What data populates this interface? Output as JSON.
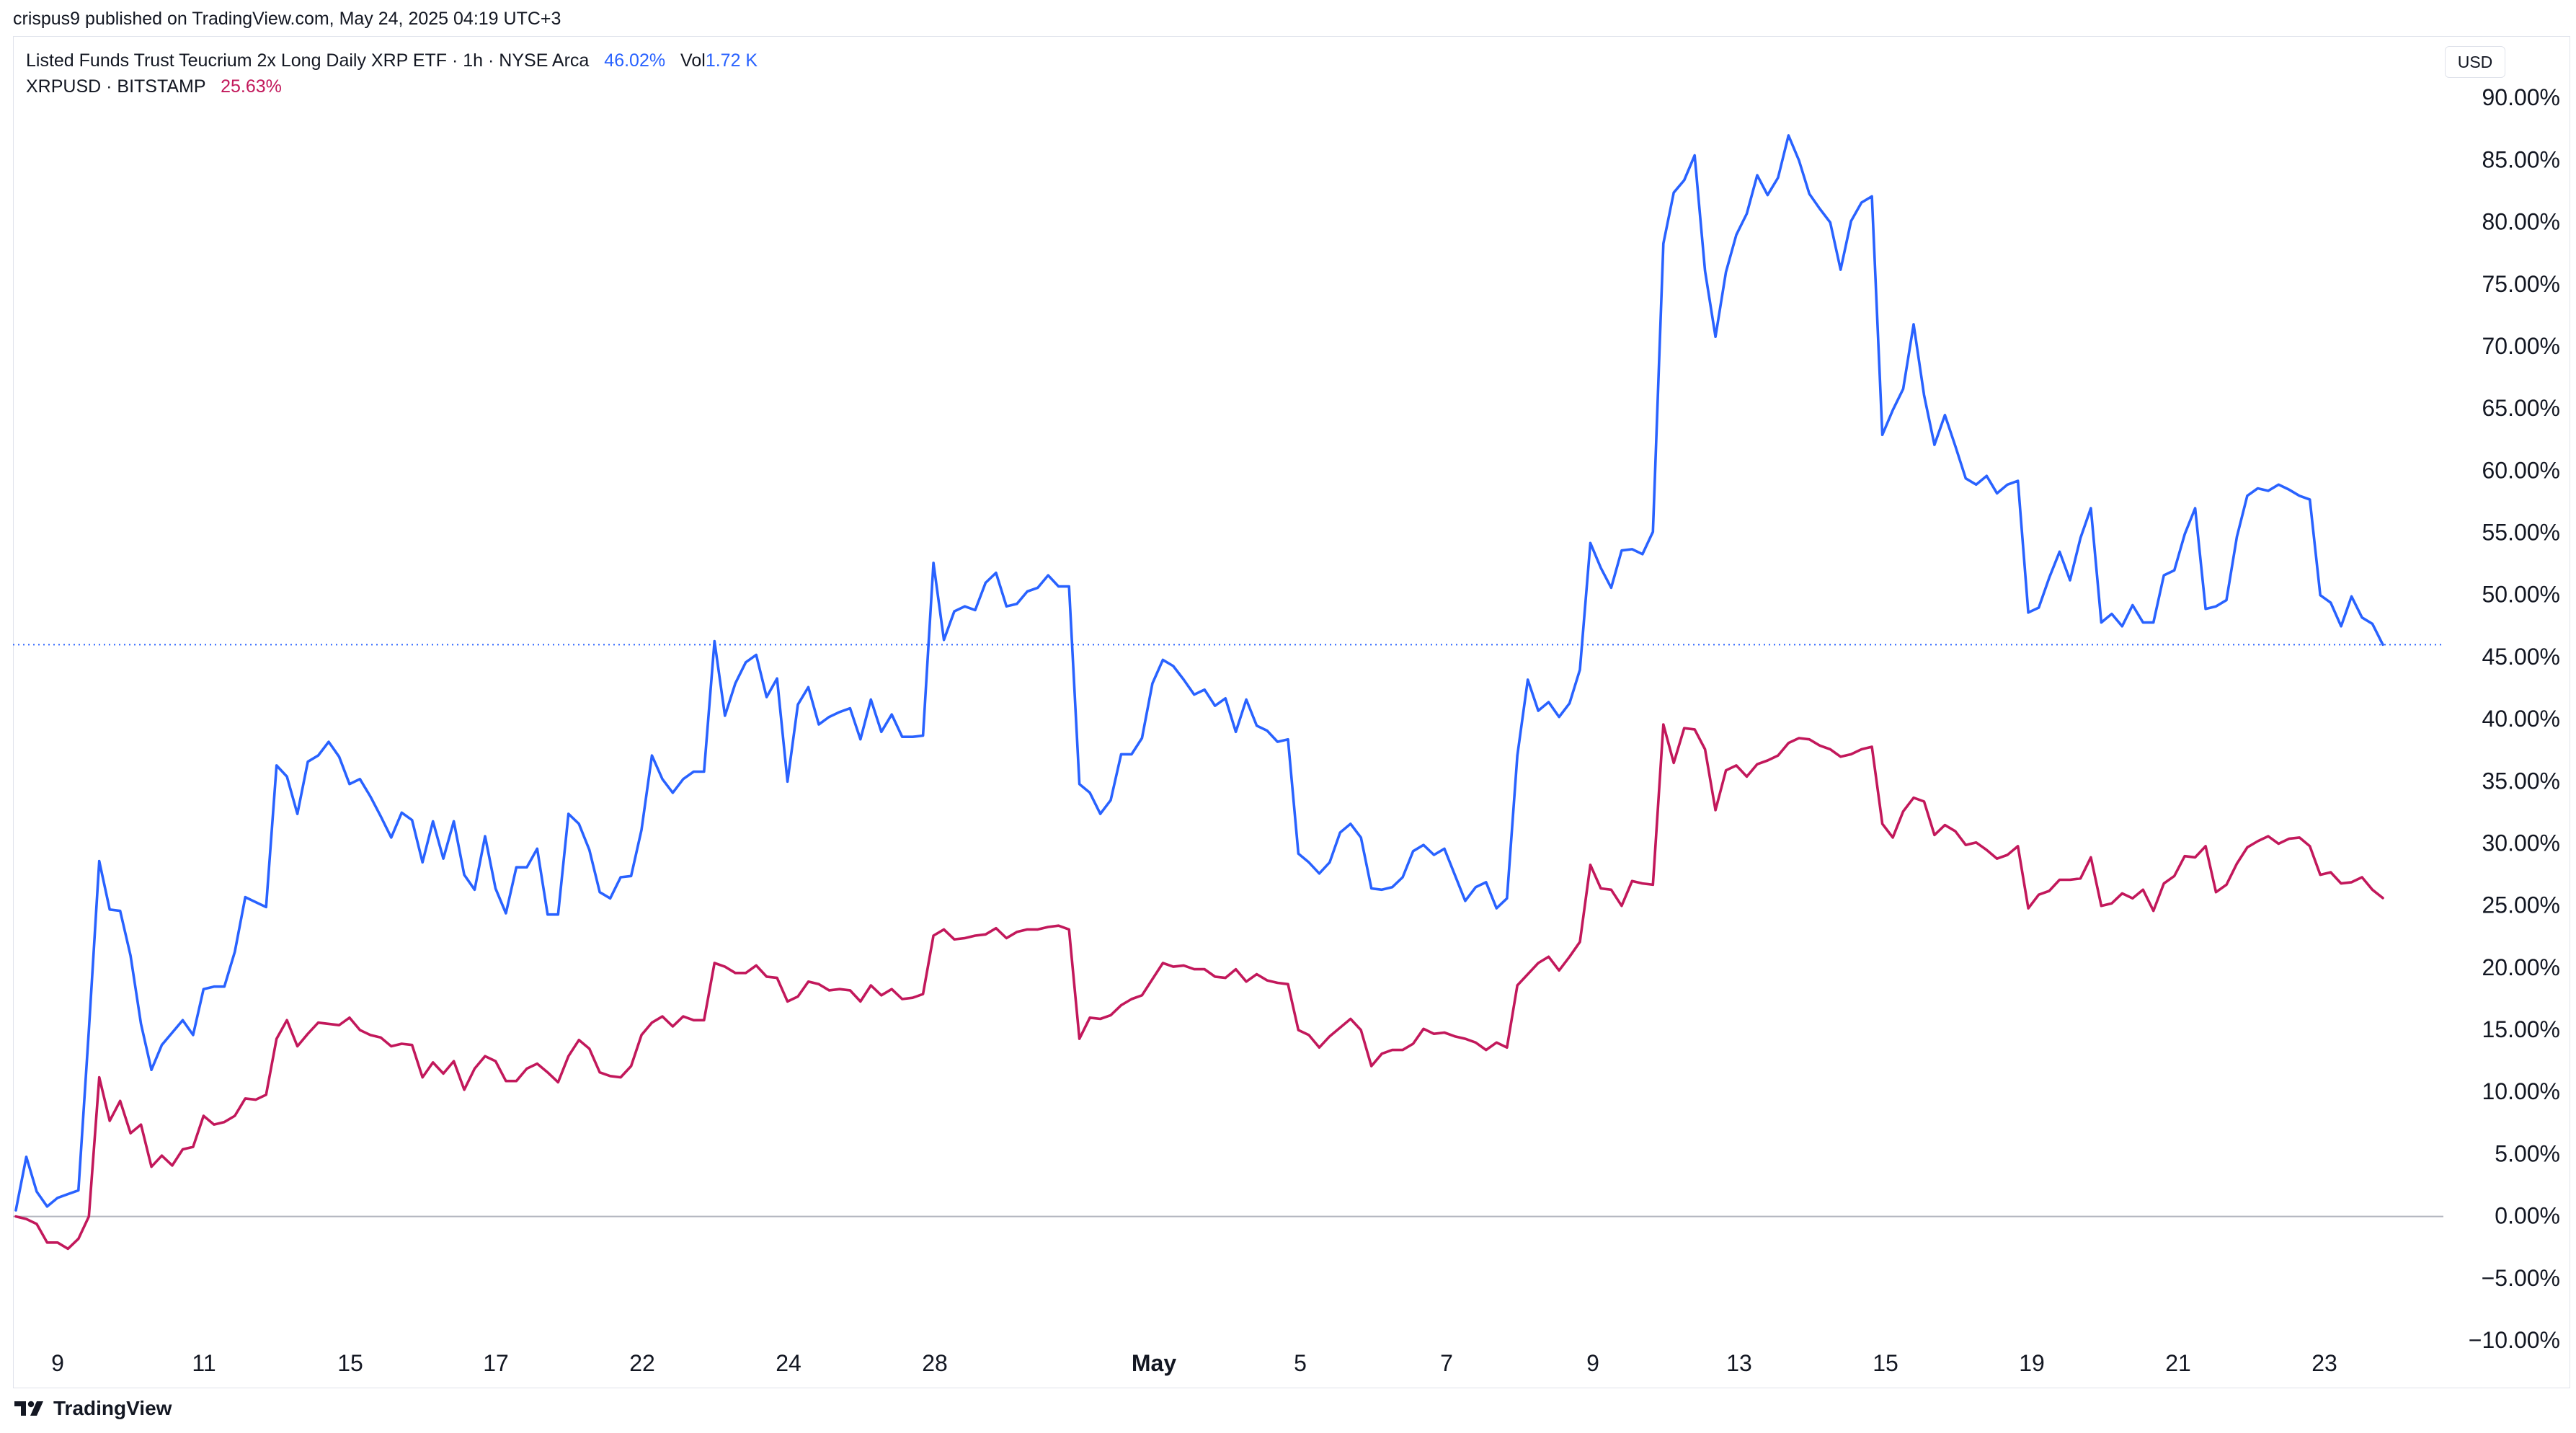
{
  "publish_line": "crispus9 published on TradingView.com, May 24, 2025 04:19 UTC+3",
  "legend": {
    "series1_name": "Listed Funds Trust Teucrium 2x Long Daily XRP ETF · 1h · NYSE Arca",
    "series1_value": "46.02%",
    "vol_label": "Vol",
    "vol_value": "1.72 K",
    "series2_name": "XRPUSD · BITSTAMP",
    "series2_value": "25.63%"
  },
  "currency_button": "USD",
  "logo_text": "TradingView",
  "colors": {
    "xrpt": "#2962ff",
    "xrpusd": "#c2185b",
    "axis_text": "#131722",
    "zero_line": "#b2b5be",
    "last_value_line": "#2962ff"
  },
  "icons": [
    "tradingview-logo-icon"
  ],
  "chart_data": {
    "type": "line",
    "ylim": [
      -10,
      95
    ],
    "yticks": [
      90,
      85,
      80,
      75,
      70,
      65,
      60,
      55,
      50,
      45,
      40,
      35,
      30,
      25,
      20,
      15,
      10,
      5,
      0,
      -5,
      -10
    ],
    "ytick_labels": [
      "90.00%",
      "85.00%",
      "80.00%",
      "75.00%",
      "70.00%",
      "65.00%",
      "60.00%",
      "55.00%",
      "50.00%",
      "45.00%",
      "40.00%",
      "35.00%",
      "30.00%",
      "25.00%",
      "20.00%",
      "15.00%",
      "10.00%",
      "5.00%",
      "0.00%",
      "−5.00%",
      "−10.00%"
    ],
    "xlim": [
      0,
      24.8
    ],
    "xticks": [
      {
        "x": 0.6,
        "label": "9",
        "bold": false
      },
      {
        "x": 2.6,
        "label": "11",
        "bold": false
      },
      {
        "x": 4.6,
        "label": "15",
        "bold": false
      },
      {
        "x": 6.6,
        "label": "17",
        "bold": false
      },
      {
        "x": 8.6,
        "label": "22",
        "bold": false
      },
      {
        "x": 10.6,
        "label": "24",
        "bold": false
      },
      {
        "x": 12.6,
        "label": "28",
        "bold": false
      },
      {
        "x": 15.6,
        "label": "May",
        "bold": true
      },
      {
        "x": 17.6,
        "label": "5",
        "bold": false
      },
      {
        "x": 19.6,
        "label": "7",
        "bold": false
      },
      {
        "x": 21.6,
        "label": "9",
        "bold": false
      },
      {
        "x": 23.6,
        "label": "13",
        "bold": false
      }
    ],
    "xticks2": [
      {
        "label": "15"
      },
      {
        "label": "19"
      },
      {
        "label": "21"
      },
      {
        "label": "23"
      }
    ],
    "last_value": 46.02,
    "series": [
      {
        "name": "Listed Funds Trust Teucrium 2x Long Daily XRP ETF",
        "color": "#2962ff",
        "values": [
          0.5,
          4.8,
          2,
          0.8,
          1.5,
          1.8,
          2.1,
          15,
          28.6,
          24.7,
          24.6,
          21,
          15.5,
          11.8,
          13.8,
          14.8,
          15.8,
          14.6,
          18.3,
          18.5,
          18.5,
          21.3,
          25.7,
          25.3,
          24.9,
          36.3,
          35.4,
          32.4,
          36.6,
          37.1,
          38.2,
          37,
          34.8,
          35.2,
          33.8,
          32.2,
          30.5,
          32.5,
          31.9,
          28.5,
          31.8,
          28.8,
          31.8,
          27.5,
          26.3,
          30.6,
          26.4,
          24.4,
          28.1,
          28.1,
          29.6,
          24.3,
          24.3,
          32.4,
          31.6,
          29.5,
          26.1,
          25.6,
          27.3,
          27.4,
          31.1,
          37.1,
          35.2,
          34.1,
          35.2,
          35.8,
          35.8,
          46.3,
          40.3,
          42.9,
          44.6,
          45.2,
          41.8,
          43.3,
          35,
          41.2,
          42.6,
          39.6,
          40.2,
          40.6,
          40.9,
          38.4,
          41.6,
          39,
          40.4,
          38.6,
          38.6,
          38.7,
          52.6,
          46.4,
          48.7,
          49.1,
          48.8,
          51,
          51.8,
          49.1,
          49.3,
          50.3,
          50.6,
          51.6,
          50.7,
          50.7,
          34.8,
          34.1,
          32.4,
          33.5,
          37.2,
          37.2,
          38.5,
          42.9,
          44.8,
          44.3,
          43.2,
          42,
          42.4,
          41.1,
          41.7,
          39,
          41.6,
          39.5,
          39.1,
          38.2,
          38.4,
          29.2,
          28.5,
          27.6,
          28.5,
          30.9,
          31.6,
          30.5,
          26.4,
          26.3,
          26.5,
          27.3,
          29.4,
          29.9,
          29.1,
          29.6,
          27.5,
          25.4,
          26.5,
          26.9,
          24.8,
          25.6,
          37.1,
          43.2,
          40.7,
          41.4,
          40.2,
          41.3,
          44,
          54.2,
          52.2,
          50.6,
          53.6,
          53.7,
          53.3,
          55.1,
          78.3,
          82.4,
          83.4,
          85.4,
          76.1,
          70.8,
          76,
          79,
          80.7,
          83.8,
          82.2,
          83.6,
          87,
          85,
          82.3,
          81.1,
          80,
          76.2,
          80.1,
          81.6,
          82.1,
          62.9,
          64.9,
          66.6,
          71.8,
          66.1,
          62.1,
          64.5,
          62,
          59.4,
          58.9,
          59.6,
          58.2,
          58.9,
          59.2,
          48.6,
          49,
          51.4,
          53.5,
          51.2,
          54.6,
          57,
          47.8,
          48.5,
          47.5,
          49.2,
          47.8,
          47.8,
          51.6,
          52,
          54.9,
          57,
          48.9,
          49.1,
          49.6,
          54.7,
          58,
          58.6,
          58.4,
          58.9,
          58.5,
          58,
          57.7,
          50,
          49.4,
          47.5,
          49.9,
          48.2,
          47.7,
          46.02
        ]
      },
      {
        "name": "XRPUSD",
        "color": "#c2185b",
        "values": [
          0,
          -0.2,
          -0.6,
          -2.1,
          -2.1,
          -2.6,
          -1.8,
          0,
          11.2,
          7.7,
          9.3,
          6.7,
          7.4,
          4,
          4.9,
          4.1,
          5.4,
          5.6,
          8.1,
          7.4,
          7.6,
          8.1,
          9.5,
          9.4,
          9.8,
          14.3,
          15.8,
          13.7,
          14.7,
          15.6,
          15.5,
          15.4,
          16,
          15,
          14.6,
          14.4,
          13.7,
          13.9,
          13.8,
          11.2,
          12.4,
          11.5,
          12.5,
          10.2,
          11.9,
          12.9,
          12.5,
          10.9,
          10.9,
          11.9,
          12.3,
          11.6,
          10.8,
          12.9,
          14.2,
          13.5,
          11.6,
          11.3,
          11.2,
          12.1,
          14.6,
          15.6,
          16.1,
          15.3,
          16.1,
          15.8,
          15.8,
          20.4,
          20.1,
          19.6,
          19.6,
          20.2,
          19.3,
          19.2,
          17.3,
          17.7,
          18.9,
          18.7,
          18.2,
          18.3,
          18.2,
          17.3,
          18.6,
          17.8,
          18.3,
          17.5,
          17.6,
          17.9,
          22.6,
          23.1,
          22.3,
          22.4,
          22.6,
          22.7,
          23.2,
          22.4,
          22.9,
          23.1,
          23.1,
          23.3,
          23.4,
          23.1,
          14.3,
          16,
          15.9,
          16.2,
          17,
          17.5,
          17.8,
          19.1,
          20.4,
          20.1,
          20.2,
          19.9,
          19.9,
          19.3,
          19.2,
          19.9,
          18.9,
          19.5,
          19,
          18.8,
          18.7,
          15,
          14.6,
          13.6,
          14.5,
          15.2,
          15.9,
          15,
          12.1,
          13.1,
          13.4,
          13.4,
          13.9,
          15.1,
          14.7,
          14.8,
          14.5,
          14.3,
          14,
          13.4,
          14,
          13.6,
          18.6,
          19.5,
          20.4,
          20.9,
          19.8,
          20.9,
          22.1,
          28.3,
          26.4,
          26.3,
          25,
          27,
          26.8,
          26.7,
          39.6,
          36.5,
          39.3,
          39.2,
          37.6,
          32.7,
          35.9,
          36.3,
          35.4,
          36.4,
          36.7,
          37.1,
          38.1,
          38.5,
          38.4,
          37.9,
          37.6,
          37,
          37.2,
          37.6,
          37.8,
          31.6,
          30.5,
          32.6,
          33.7,
          33.4,
          30.7,
          31.5,
          31,
          29.9,
          30.1,
          29.5,
          28.8,
          29.1,
          29.8,
          24.8,
          25.9,
          26.2,
          27.1,
          27.1,
          27.2,
          28.9,
          25,
          25.2,
          26,
          25.6,
          26.3,
          24.6,
          26.8,
          27.4,
          29,
          28.9,
          29.8,
          26.1,
          26.7,
          28.4,
          29.7,
          30.2,
          30.6,
          30,
          30.4,
          30.5,
          29.8,
          27.5,
          27.7,
          26.8,
          26.9,
          27.3,
          26.3,
          25.63
        ]
      }
    ]
  }
}
